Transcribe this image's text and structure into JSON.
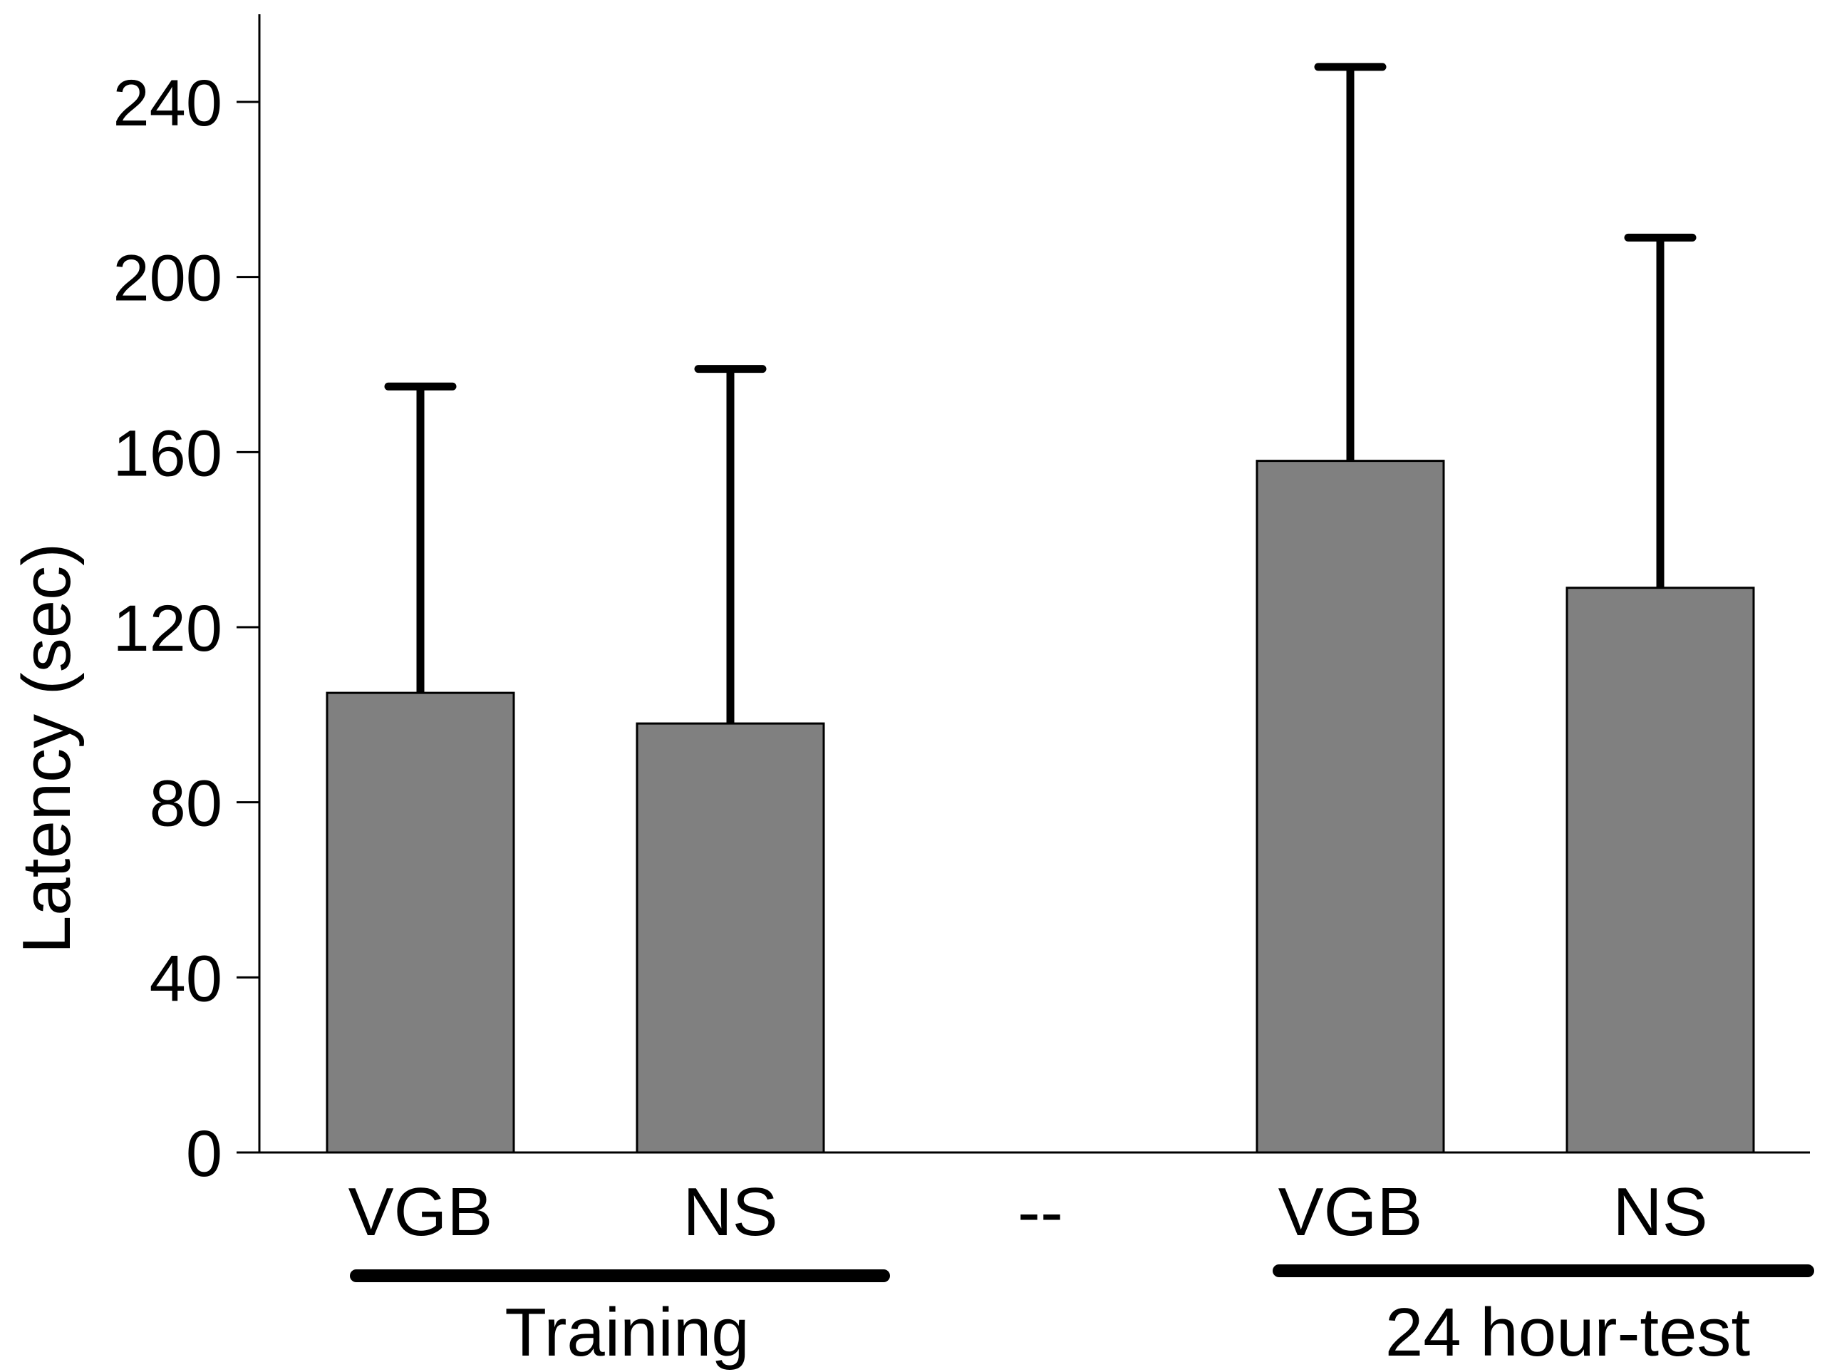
{
  "chart_data": {
    "type": "bar",
    "title": "",
    "xlabel": "",
    "ylabel": "Latency (sec)",
    "ylim": [
      0,
      260
    ],
    "yticks": [
      0,
      40,
      80,
      120,
      160,
      200,
      240
    ],
    "grid": false,
    "legend": "none",
    "categories": [
      "VGB",
      "NS",
      "--",
      "VGB",
      "NS"
    ],
    "values": [
      105,
      98,
      null,
      158,
      129
    ],
    "error_upper": [
      175,
      179,
      null,
      248,
      209
    ],
    "groups": [
      {
        "label": "Training",
        "categories": [
          0,
          1
        ]
      },
      {
        "label": "24 hour-test",
        "categories": [
          3,
          4
        ]
      }
    ],
    "colors": {
      "bar": "#808080",
      "bar_edge": "#000000",
      "error": "#000000"
    }
  }
}
